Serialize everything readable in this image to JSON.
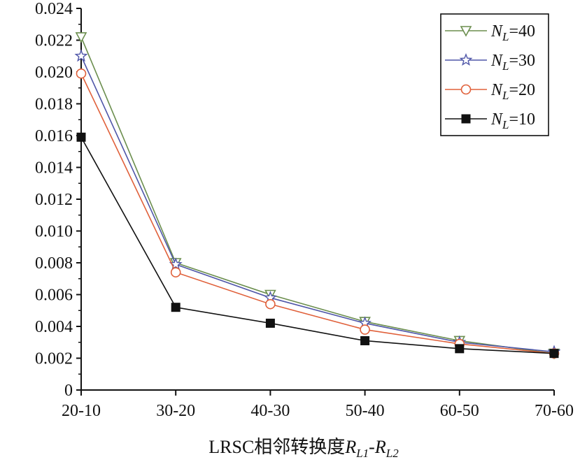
{
  "chart_data": {
    "type": "line",
    "title": "",
    "xlabel_main": "LRSC相邻转换度",
    "xlabel_r": "R",
    "xlabel_sub1": "L1",
    "xlabel_dash": "-",
    "xlabel_sub2": "L2",
    "ylabel": "",
    "categories": [
      "20-10",
      "30-20",
      "40-30",
      "50-40",
      "60-50",
      "70-60"
    ],
    "ylim": [
      0,
      0.024
    ],
    "yticks": [
      "0",
      "0.002",
      "0.004",
      "0.006",
      "0.008",
      "0.010",
      "0.012",
      "0.014",
      "0.016",
      "0.018",
      "0.020",
      "0.022",
      "0.024"
    ],
    "grid": false,
    "legend_position": "top-right",
    "series": [
      {
        "name": "N_L=40",
        "label_base": "N",
        "label_sub": "L",
        "label_rest": "=40",
        "marker": "triangle-down-open",
        "color": "#6b8e4e",
        "values": [
          0.0222,
          0.008,
          0.006,
          0.0043,
          0.0031,
          0.0023
        ]
      },
      {
        "name": "N_L=30",
        "label_base": "N",
        "label_sub": "L",
        "label_rest": "=30",
        "marker": "star-open",
        "color": "#4f56a8",
        "values": [
          0.021,
          0.0079,
          0.0058,
          0.0042,
          0.003,
          0.0024
        ]
      },
      {
        "name": "N_L=20",
        "label_base": "N",
        "label_sub": "L",
        "label_rest": "=20",
        "marker": "circle-open",
        "color": "#e0603a",
        "values": [
          0.0199,
          0.0074,
          0.0054,
          0.0038,
          0.0029,
          0.0023
        ]
      },
      {
        "name": "N_L=10",
        "label_base": "N",
        "label_sub": "L",
        "label_rest": "=10",
        "marker": "square-filled",
        "color": "#111111",
        "values": [
          0.0159,
          0.0052,
          0.0042,
          0.0031,
          0.0026,
          0.0023
        ]
      }
    ]
  }
}
